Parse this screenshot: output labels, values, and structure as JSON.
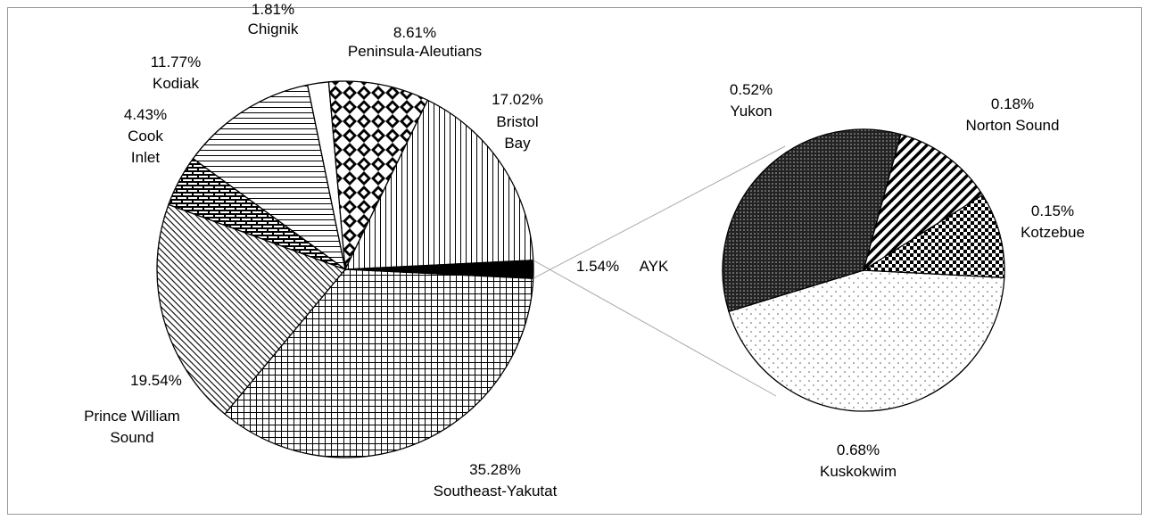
{
  "chart_data": {
    "type": "pie-of-pie",
    "main": {
      "categories": [
        "Southeast-Yakutat",
        "Prince William\nSound",
        "Cook\nInlet",
        "Kodiak",
        "Chignik",
        "Peninsula-Aleutians",
        "Bristol\nBay",
        "AYK"
      ],
      "values": [
        35.28,
        19.54,
        4.43,
        11.77,
        1.81,
        8.61,
        17.02,
        1.54
      ],
      "value_labels": [
        "35.28%",
        "19.54%",
        "4.43%",
        "11.77%",
        "1.81%",
        "8.61%",
        "17.02%",
        "1.54%"
      ]
    },
    "sub": {
      "categories": [
        "Kuskokwim",
        "Yukon",
        "Norton Sound",
        "Kotzebue"
      ],
      "values": [
        0.68,
        0.52,
        0.18,
        0.15
      ],
      "value_labels": [
        "0.68%",
        "0.52%",
        "0.18%",
        "0.15%"
      ]
    }
  }
}
